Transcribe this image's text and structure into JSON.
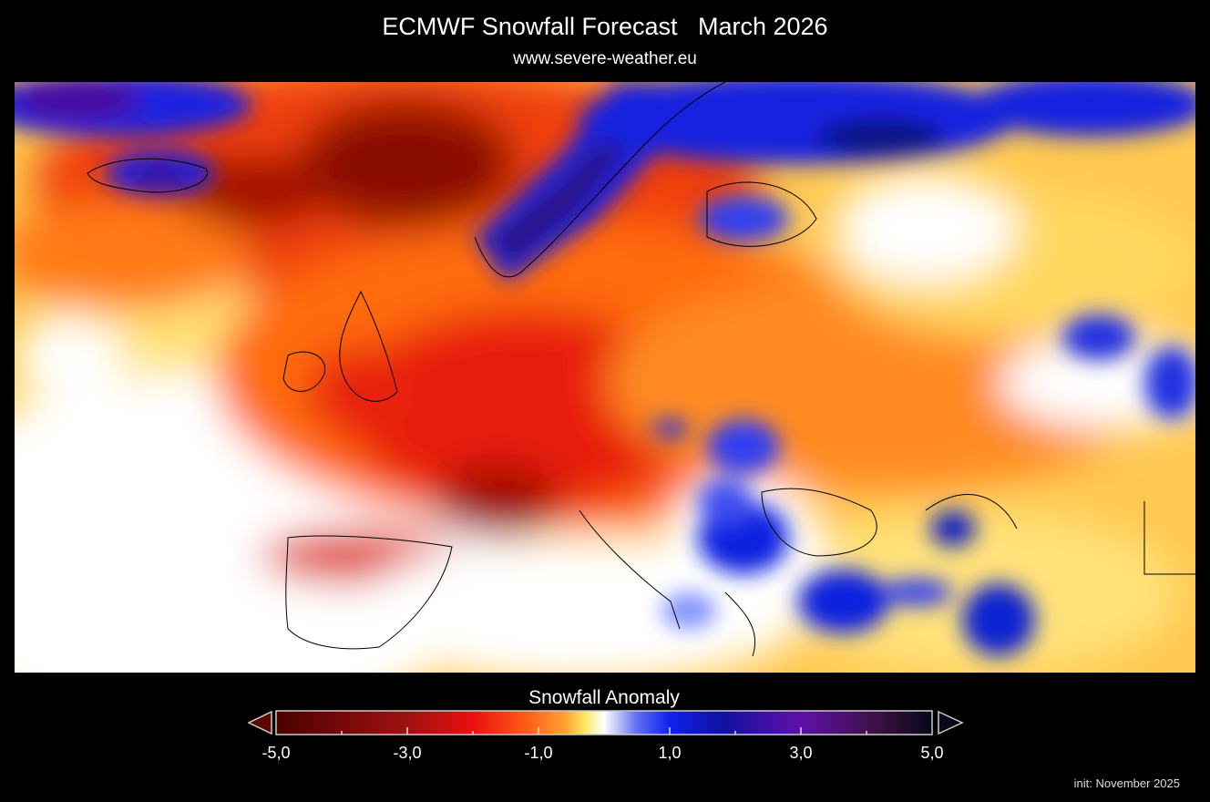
{
  "header": {
    "title": "ECMWF Snowfall Forecast   March 2026",
    "subtitle": "www.severe-weather.eu"
  },
  "map": {
    "region": "Europe",
    "variable": "snowfall anomaly",
    "colors": {
      "strong_deficit": "#5a0000",
      "deficit": "#e81010",
      "mild_deficit": "#ff7a18",
      "slight_deficit": "#ffe060",
      "neutral": "#ffffff",
      "surplus": "#1020e0",
      "strong_surplus": "#5a10a0",
      "extreme_surplus": "#100820"
    }
  },
  "colorbar": {
    "title": "Snowfall Anomaly",
    "min": -5,
    "max": 5,
    "tick_values": [
      -4,
      -3,
      -2,
      -1,
      1,
      2,
      3,
      4
    ],
    "labels": [
      "-5,0",
      "-3,0",
      "-1,0",
      "1,0",
      "3,0",
      "5,0"
    ],
    "label_values": [
      -5,
      -3,
      -1,
      1,
      3,
      5
    ],
    "extend": "both"
  },
  "footer": {
    "init": "init: November 2025"
  }
}
